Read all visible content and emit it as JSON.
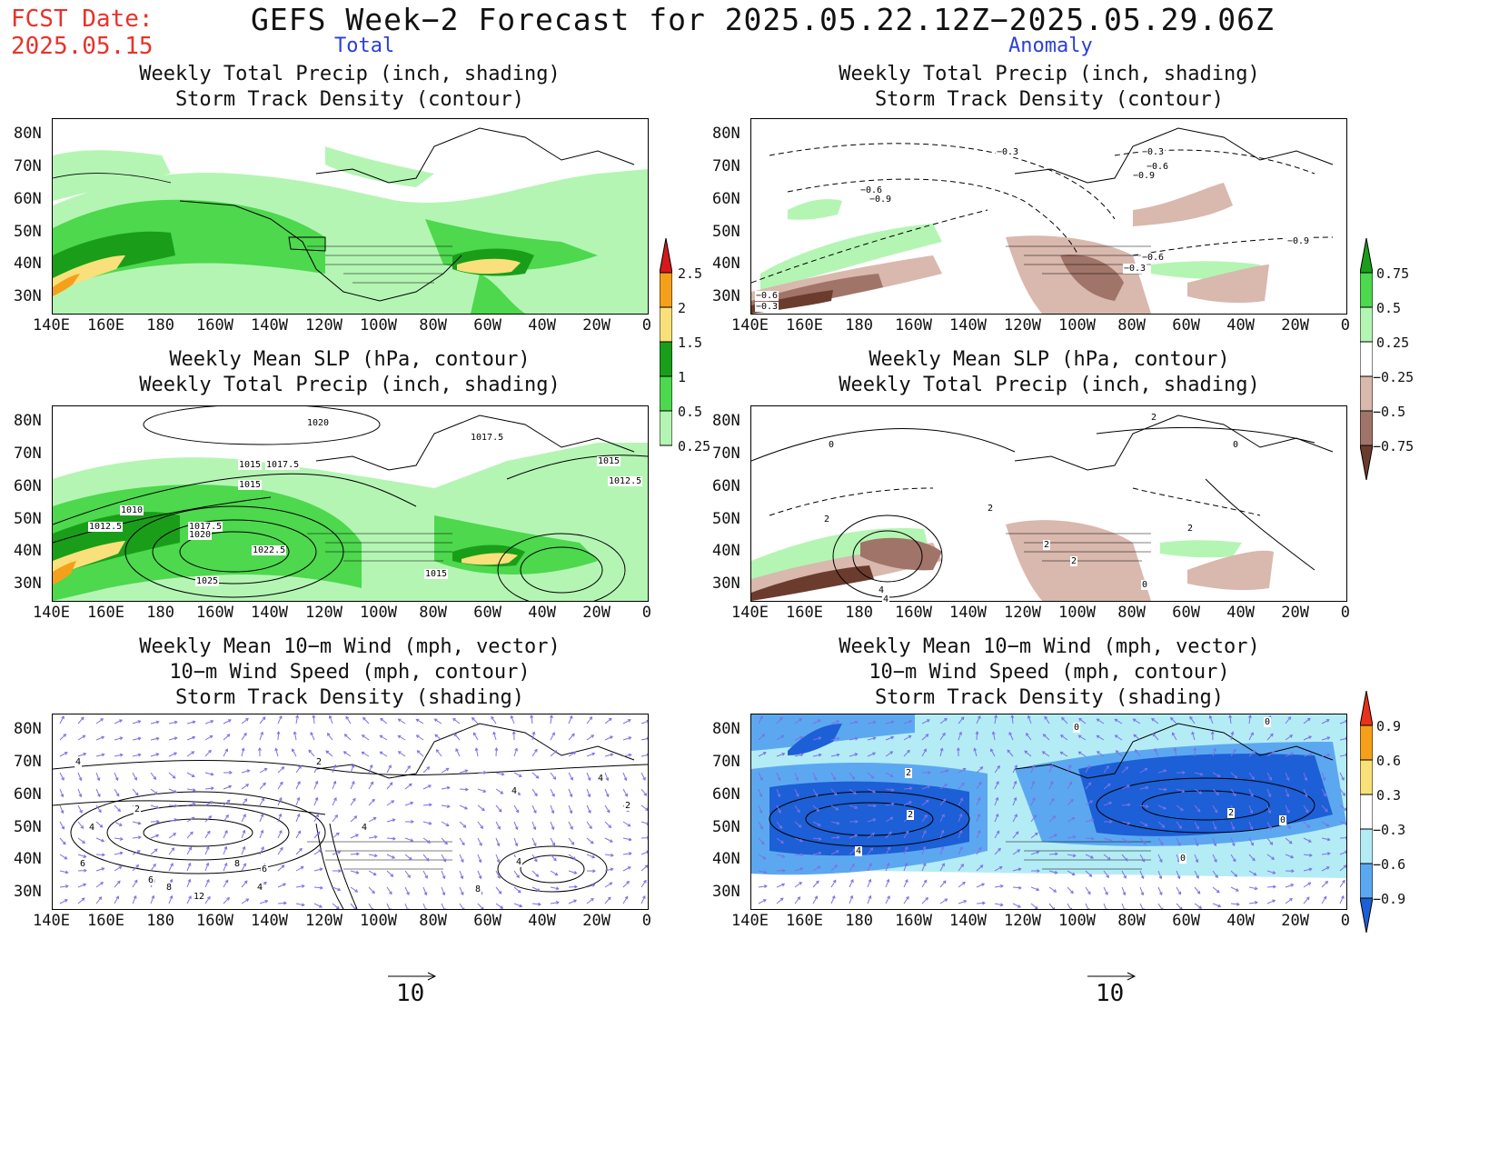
{
  "header": {
    "fcst_date_label": "FCST Date:",
    "fcst_date_value": "2025.05.15",
    "title": "GEFS Week−2 Forecast for 2025.05.22.12Z−2025.05.29.06Z",
    "col_total": "Total",
    "col_anomaly": "Anomaly"
  },
  "axes": {
    "lat_labels": [
      "80N",
      "70N",
      "60N",
      "50N",
      "40N",
      "30N"
    ],
    "lon_labels": [
      "140E",
      "160E",
      "180",
      "160W",
      "140W",
      "120W",
      "100W",
      "80W",
      "60W",
      "40W",
      "20W",
      "0"
    ]
  },
  "panels": {
    "p1": {
      "title1": "Weekly Total Precip (inch, shading)",
      "title2": "Storm Track Density (contour)"
    },
    "p2": {
      "title1": "Weekly Total Precip (inch, shading)",
      "title2": "Storm Track Density (contour)"
    },
    "p3": {
      "title1": "Weekly Mean SLP (hPa, contour)",
      "title2": "Weekly Total Precip (inch, shading)"
    },
    "p4": {
      "title1": "Weekly Mean SLP (hPa, contour)",
      "title2": "Weekly Total Precip (inch, shading)"
    },
    "p5": {
      "title1": "Weekly Mean 10−m Wind (mph, vector)",
      "title2": "10−m Wind Speed (mph, contour)",
      "title3": "Storm Track Density (shading)"
    },
    "p6": {
      "title1": "Weekly Mean 10−m Wind (mph, vector)",
      "title2": "10−m Wind Speed (mph, contour)",
      "title3": "Storm Track Density (shading)"
    }
  },
  "colorbars": {
    "precip_total": {
      "labels": [
        "2.5",
        "2",
        "1.5",
        "1",
        "0.5",
        "0.25"
      ],
      "colors": [
        "#d7191c",
        "#f5a01a",
        "#f9e07a",
        "#1a9e1a",
        "#4dd84d",
        "#b4f5b4"
      ]
    },
    "precip_anom": {
      "labels": [
        "0.75",
        "0.5",
        "0.25",
        "−0.25",
        "−0.5",
        "−0.75"
      ],
      "colors": [
        "#1a9e1a",
        "#4dd84d",
        "#b4f5b4",
        "#d9b8ae",
        "#a07468",
        "#6b3c2e"
      ]
    },
    "storm_anom": {
      "labels": [
        "0.9",
        "0.6",
        "0.3",
        "−0.3",
        "−0.6",
        "−0.9"
      ],
      "colors": [
        "#e8321a",
        "#f5a01a",
        "#f9e07a",
        "#b4ecf5",
        "#5ca8f0",
        "#1c5fd6"
      ]
    }
  },
  "contour_labels": {
    "p2": [
      "−0.3",
      "−0.3",
      "−0.6",
      "−0.9",
      "−0.6",
      "−0.9",
      "−0.9",
      "−0.6",
      "−0.3",
      "−0.6",
      "−0.3"
    ],
    "p3": [
      "1020",
      "1017.5",
      "1015",
      "1017.5",
      "1015",
      "1010",
      "1012.5",
      "1017.5",
      "1020",
      "1022.5",
      "1025",
      "1015",
      "1015",
      "1012.5"
    ],
    "p4": [
      "2",
      "0",
      "0",
      "2",
      "2",
      "2",
      "0",
      "4",
      "4",
      "2",
      "2"
    ],
    "p5": [
      "4",
      "2",
      "4",
      "2",
      "4",
      "6",
      "8",
      "6",
      "8",
      "12",
      "4",
      "6",
      "8",
      "4",
      "4",
      "2",
      "4"
    ],
    "p6": [
      "0",
      "0",
      "2",
      "4",
      "2",
      "2",
      "0",
      "0"
    ]
  },
  "vector_reference": {
    "left": "10",
    "right": "10"
  }
}
